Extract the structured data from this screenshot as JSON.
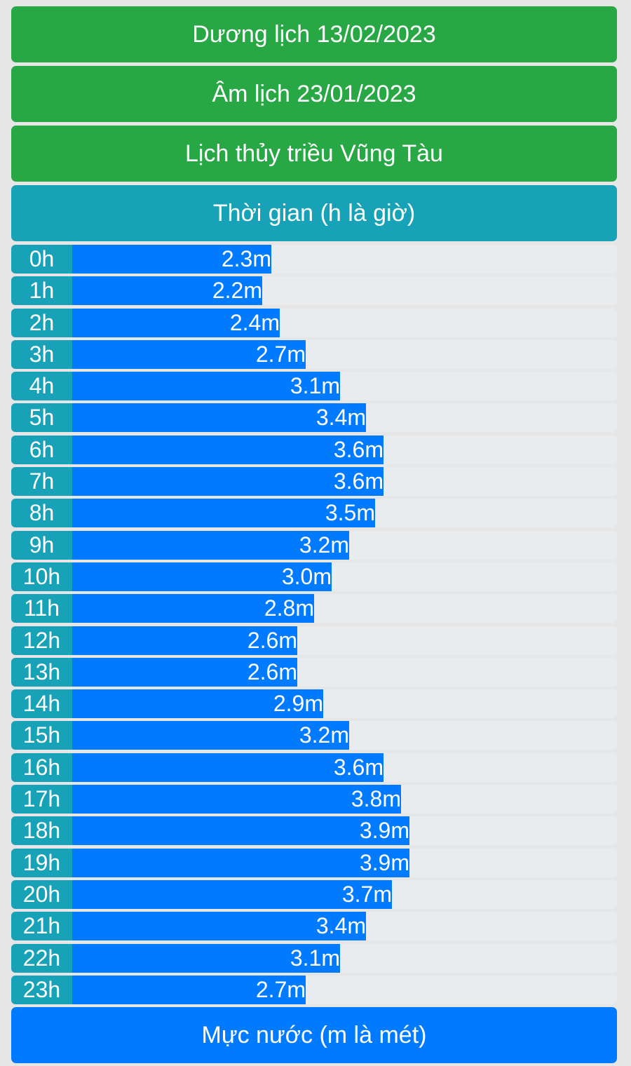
{
  "header": {
    "solar_date": "Dương lịch 13/02/2023",
    "lunar_date": "Âm lịch 23/01/2023",
    "title": "Lịch thủy triều Vũng Tàu",
    "time_label": "Thời gian (h là giờ)"
  },
  "footer": {
    "level_label": "Mực nước (m là mét)"
  },
  "colors": {
    "green": "#28a745",
    "teal": "#17a2b8",
    "blue": "#007bff",
    "track": "#e9ecef"
  },
  "chart_data": {
    "type": "bar",
    "orientation": "horizontal",
    "categories": [
      "0h",
      "1h",
      "2h",
      "3h",
      "4h",
      "5h",
      "6h",
      "7h",
      "8h",
      "9h",
      "10h",
      "11h",
      "12h",
      "13h",
      "14h",
      "15h",
      "16h",
      "17h",
      "18h",
      "19h",
      "20h",
      "21h",
      "22h",
      "23h"
    ],
    "values": [
      2.3,
      2.2,
      2.4,
      2.7,
      3.1,
      3.4,
      3.6,
      3.6,
      3.5,
      3.2,
      3.0,
      2.8,
      2.6,
      2.6,
      2.9,
      3.2,
      3.6,
      3.8,
      3.9,
      3.9,
      3.7,
      3.4,
      3.1,
      2.7
    ],
    "labels": [
      "2.3m",
      "2.2m",
      "2.4m",
      "2.7m",
      "3.1m",
      "3.4m",
      "3.6m",
      "3.6m",
      "3.5m",
      "3.2m",
      "3.0m",
      "2.8m",
      "2.6m",
      "2.6m",
      "2.9m",
      "3.2m",
      "3.6m",
      "3.8m",
      "3.9m",
      "3.9m",
      "3.7m",
      "3.4m",
      "3.1m",
      "2.7m"
    ],
    "unit": "m",
    "xlim": [
      0,
      6.3
    ]
  }
}
